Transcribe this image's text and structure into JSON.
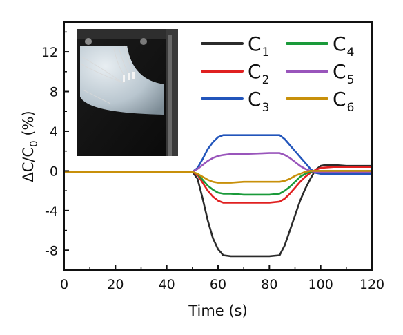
{
  "chart_data": {
    "type": "line",
    "xlabel": "Time (s)",
    "ylabel": {
      "prefix": "ΔC/C",
      "sub": "0",
      "suffix": " (%)"
    },
    "xlim": [
      0,
      120
    ],
    "ylim": [
      -10,
      15
    ],
    "xticks": [
      0,
      20,
      40,
      60,
      80,
      100,
      120
    ],
    "yticks": [
      -8,
      -4,
      0,
      4,
      8,
      12
    ],
    "grid": false,
    "legend_placement": "top-right",
    "inset_photo": true,
    "series": [
      {
        "name": "C",
        "sub": "1",
        "color": "#2b2b2b",
        "x": [
          0,
          50,
          52,
          54,
          56,
          58,
          60,
          62,
          65,
          70,
          80,
          84,
          86,
          88,
          90,
          92,
          94,
          96,
          98,
          100,
          102,
          105,
          110,
          120
        ],
        "y": [
          -0.1,
          -0.1,
          -0.8,
          -2.8,
          -5.0,
          -6.8,
          -7.9,
          -8.5,
          -8.6,
          -8.6,
          -8.6,
          -8.5,
          -7.5,
          -6.0,
          -4.5,
          -3.0,
          -1.8,
          -0.8,
          0.1,
          0.5,
          0.6,
          0.6,
          0.5,
          0.5
        ]
      },
      {
        "name": "C",
        "sub": "2",
        "color": "#e02020",
        "x": [
          0,
          50,
          52,
          54,
          56,
          58,
          60,
          62,
          65,
          70,
          80,
          84,
          86,
          88,
          90,
          92,
          94,
          96,
          98,
          100,
          105,
          110,
          120
        ],
        "y": [
          -0.1,
          -0.1,
          -0.4,
          -1.2,
          -2.0,
          -2.6,
          -3.0,
          -3.2,
          -3.2,
          -3.2,
          -3.2,
          -3.1,
          -2.8,
          -2.3,
          -1.7,
          -1.1,
          -0.6,
          -0.2,
          0.1,
          0.3,
          0.4,
          0.4,
          0.4
        ]
      },
      {
        "name": "C",
        "sub": "3",
        "color": "#2255bb",
        "x": [
          0,
          50,
          52,
          54,
          56,
          58,
          60,
          62,
          65,
          70,
          80,
          84,
          86,
          88,
          90,
          92,
          94,
          96,
          98,
          100,
          105,
          110,
          120
        ],
        "y": [
          -0.1,
          -0.1,
          0.3,
          1.2,
          2.2,
          2.9,
          3.4,
          3.6,
          3.6,
          3.6,
          3.6,
          3.6,
          3.2,
          2.6,
          2.0,
          1.4,
          0.8,
          0.2,
          -0.2,
          -0.3,
          -0.3,
          -0.3,
          -0.3
        ]
      },
      {
        "name": "C",
        "sub": "4",
        "color": "#1a9a3a",
        "x": [
          0,
          50,
          52,
          54,
          56,
          58,
          60,
          62,
          65,
          70,
          80,
          84,
          86,
          88,
          90,
          92,
          94,
          96,
          98,
          100,
          105,
          110,
          120
        ],
        "y": [
          -0.1,
          -0.1,
          -0.3,
          -0.9,
          -1.5,
          -1.9,
          -2.2,
          -2.3,
          -2.3,
          -2.4,
          -2.4,
          -2.3,
          -2.0,
          -1.6,
          -1.1,
          -0.6,
          -0.3,
          -0.1,
          0.0,
          0.0,
          0.0,
          0.0,
          0.0
        ]
      },
      {
        "name": "C",
        "sub": "5",
        "color": "#9955bb",
        "x": [
          0,
          50,
          52,
          54,
          56,
          58,
          60,
          62,
          65,
          70,
          80,
          84,
          86,
          88,
          90,
          92,
          94,
          96,
          98,
          100,
          105,
          110,
          120
        ],
        "y": [
          -0.1,
          -0.1,
          0.2,
          0.6,
          1.0,
          1.3,
          1.5,
          1.6,
          1.7,
          1.7,
          1.8,
          1.8,
          1.6,
          1.3,
          0.9,
          0.5,
          0.2,
          0.0,
          -0.1,
          -0.1,
          -0.1,
          -0.1,
          -0.1
        ]
      },
      {
        "name": "C",
        "sub": "6",
        "color": "#c8900a",
        "x": [
          0,
          50,
          52,
          54,
          56,
          58,
          60,
          62,
          65,
          70,
          80,
          84,
          86,
          88,
          90,
          92,
          94,
          96,
          98,
          100,
          105,
          110,
          120
        ],
        "y": [
          -0.1,
          -0.1,
          -0.3,
          -0.6,
          -0.9,
          -1.1,
          -1.2,
          -1.2,
          -1.2,
          -1.1,
          -1.1,
          -1.1,
          -1.0,
          -0.8,
          -0.5,
          -0.3,
          -0.1,
          0.0,
          0.0,
          0.0,
          0.0,
          0.0,
          0.0
        ]
      }
    ]
  }
}
